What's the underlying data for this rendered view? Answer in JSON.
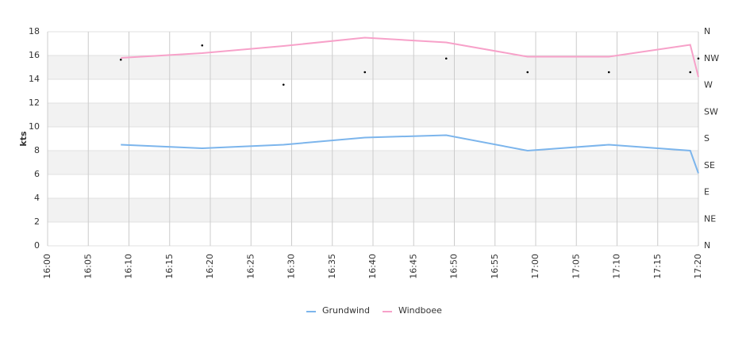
{
  "chart_data": {
    "type": "line",
    "y_label": "kts",
    "x": [
      "16:09",
      "16:19",
      "16:29",
      "16:39",
      "16:49",
      "16:59",
      "17:09",
      "17:19",
      "17:20"
    ],
    "xlim": [
      "16:00",
      "17:20"
    ],
    "xticks": [
      "16:00",
      "16:05",
      "16:10",
      "16:15",
      "16:20",
      "16:25",
      "16:30",
      "16:35",
      "16:40",
      "16:45",
      "16:50",
      "16:55",
      "17:00",
      "17:05",
      "17:10",
      "17:15",
      "17:20"
    ],
    "ylim": [
      0,
      18
    ],
    "yticks": [
      0,
      2,
      4,
      6,
      8,
      10,
      12,
      14,
      16,
      18
    ],
    "y2lim": [
      0,
      360
    ],
    "y2ticks": [
      {
        "value": 0,
        "label": "N"
      },
      {
        "value": 45,
        "label": "NE"
      },
      {
        "value": 90,
        "label": "E"
      },
      {
        "value": 135,
        "label": "SE"
      },
      {
        "value": 180,
        "label": "S"
      },
      {
        "value": 225,
        "label": "SW"
      },
      {
        "value": 270,
        "label": "W"
      },
      {
        "value": 315,
        "label": "NW"
      },
      {
        "value": 360,
        "label": "N"
      }
    ],
    "grid": true,
    "legend": "bottom",
    "series": [
      {
        "name": "Grundwind",
        "color": "#7cb5ec",
        "values": [
          8.5,
          8.2,
          8.5,
          9.1,
          9.3,
          8.0,
          8.5,
          8.0,
          6.1
        ]
      },
      {
        "name": "Windboee",
        "color": "#f7a1c9",
        "values": [
          15.8,
          16.2,
          16.8,
          17.5,
          17.1,
          15.9,
          15.9,
          16.9,
          14.2
        ]
      },
      {
        "type": "scatter",
        "axis": "y2",
        "color": "#000000",
        "values": [
          313,
          337,
          271,
          292,
          315,
          292,
          292,
          292,
          315
        ]
      }
    ]
  }
}
